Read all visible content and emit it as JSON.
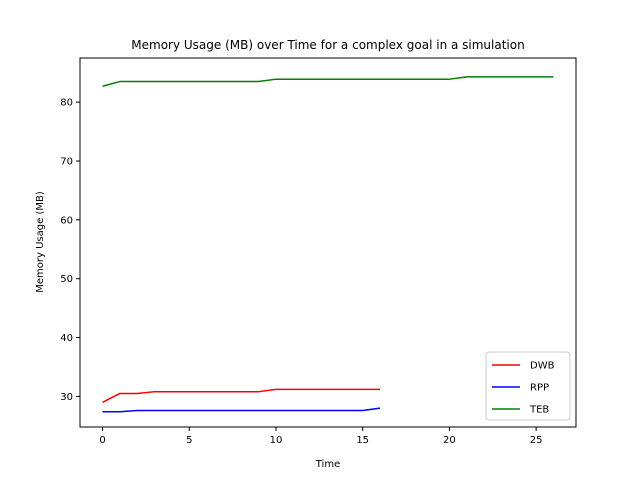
{
  "chart_data": {
    "type": "line",
    "title": "Memory Usage (MB) over Time for a complex goal in a simulation",
    "xlabel": "Time",
    "ylabel": "Memory Usage (MB)",
    "xlim": [
      -1.3,
      27.3
    ],
    "ylim": [
      24.8,
      87.5
    ],
    "xticks": [
      0,
      5,
      10,
      15,
      20,
      25
    ],
    "yticks": [
      30,
      40,
      50,
      60,
      70,
      80
    ],
    "grid": false,
    "legend": "bottom-right",
    "series": [
      {
        "name": "DWB",
        "color": "#ff0000",
        "x": [
          0,
          1,
          2,
          3,
          4,
          5,
          6,
          7,
          8,
          9,
          10,
          11,
          12,
          13,
          14,
          15,
          16
        ],
        "values": [
          29.0,
          30.5,
          30.5,
          30.8,
          30.8,
          30.8,
          30.8,
          30.8,
          30.8,
          30.8,
          31.2,
          31.2,
          31.2,
          31.2,
          31.2,
          31.2,
          31.2
        ]
      },
      {
        "name": "RPP",
        "color": "#0000ff",
        "x": [
          0,
          1,
          2,
          3,
          4,
          5,
          6,
          7,
          8,
          9,
          10,
          11,
          12,
          13,
          14,
          15,
          16
        ],
        "values": [
          27.4,
          27.4,
          27.6,
          27.6,
          27.6,
          27.6,
          27.6,
          27.6,
          27.6,
          27.6,
          27.6,
          27.6,
          27.6,
          27.6,
          27.6,
          27.6,
          28.0
        ]
      },
      {
        "name": "TEB",
        "color": "#008000",
        "x": [
          0,
          1,
          2,
          3,
          4,
          5,
          6,
          7,
          8,
          9,
          10,
          11,
          12,
          13,
          14,
          15,
          16,
          17,
          18,
          19,
          20,
          21,
          22,
          23,
          24,
          25,
          26
        ],
        "values": [
          82.7,
          83.5,
          83.5,
          83.5,
          83.5,
          83.5,
          83.5,
          83.5,
          83.5,
          83.5,
          83.9,
          83.9,
          83.9,
          83.9,
          83.9,
          83.9,
          83.9,
          83.9,
          83.9,
          83.9,
          83.9,
          84.3,
          84.3,
          84.3,
          84.3,
          84.3,
          84.3
        ]
      }
    ]
  }
}
